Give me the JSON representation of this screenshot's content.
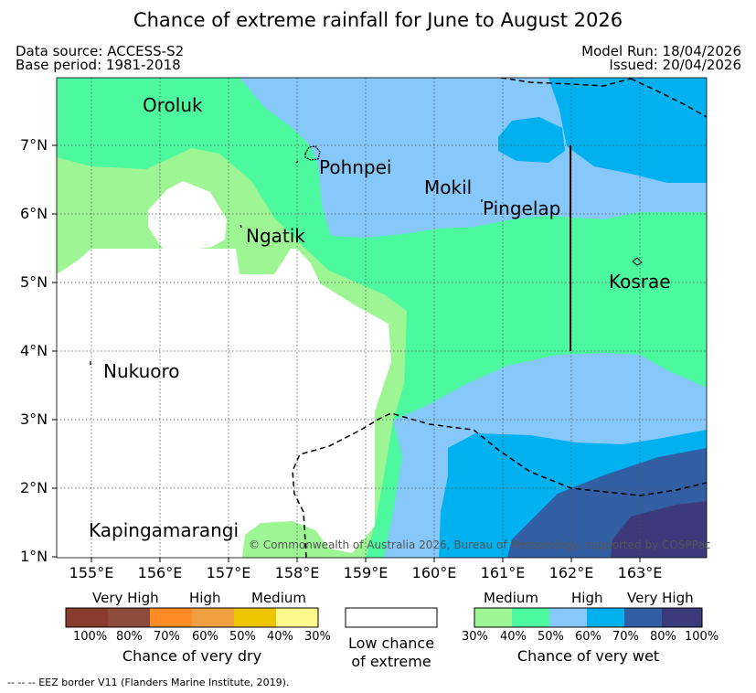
{
  "title": "Chance of extreme rainfall for June to August 2026",
  "header": {
    "data_source": "Data source: ACCESS-S2",
    "base_period": "Base period: 1981-2018",
    "model_run": "Model Run: 18/04/2026",
    "issued": "Issued: 20/04/2026"
  },
  "map": {
    "lat_labels": [
      "7°N",
      "6°N",
      "5°N",
      "4°N",
      "3°N",
      "2°N",
      "1°N"
    ],
    "lon_labels": [
      "155°E",
      "156°E",
      "157°E",
      "158°E",
      "159°E",
      "160°E",
      "161°E",
      "162°E",
      "163°E"
    ],
    "places": [
      "Oroluk",
      "Pohnpei",
      "Mokil",
      "Pingelap",
      "Ngatik",
      "Kosrae",
      "Nukuoro",
      "Kapingamarangi"
    ],
    "copyright": "© Commonwealth of Australia 2026, Bureau of Meteorology, supported by COSPPac"
  },
  "legend": {
    "dry": {
      "categories": [
        "Very High",
        "High",
        "Medium"
      ],
      "percents": [
        "100%",
        "80%",
        "70%",
        "60%",
        "50%",
        "40%",
        "30%"
      ],
      "label": "Chance of very dry",
      "colors": [
        "#8b3a2e",
        "#8c4b3b",
        "#ff8b26",
        "#f0a040",
        "#edc400",
        "#fff88a"
      ]
    },
    "neutral": {
      "label_line1": "Low chance",
      "label_line2": "of extreme",
      "color": "#ffffff"
    },
    "wet": {
      "categories": [
        "Medium",
        "High",
        "Very High"
      ],
      "percents": [
        "30%",
        "40%",
        "50%",
        "60%",
        "70%",
        "80%",
        "100%"
      ],
      "label": "Chance of very wet",
      "colors": [
        "#9df594",
        "#4cf99f",
        "#87c8fb",
        "#00b0ef",
        "#325fa4",
        "#3c3a7a"
      ]
    }
  },
  "footnote": "-- -- -- EEZ border V11 (Flanders Marine Institute, 2019)."
}
